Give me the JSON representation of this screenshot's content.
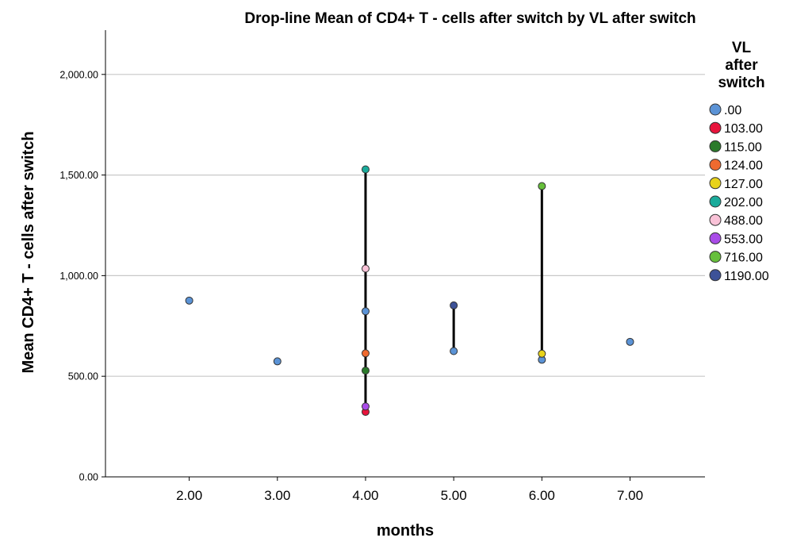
{
  "chart_data": {
    "type": "scatter",
    "title": "Drop-line Mean of CD4+ T -  cells after switch by VL after switch",
    "xlabel": "months",
    "ylabel": "Mean CD4+ T - cells after switch",
    "xlim": [
      1.05,
      7.85
    ],
    "ylim": [
      0,
      2220
    ],
    "x_ticks": [
      2,
      3,
      4,
      5,
      6,
      7
    ],
    "x_tick_labels": [
      "2.00",
      "3.00",
      "4.00",
      "5.00",
      "6.00",
      "7.00"
    ],
    "y_ticks": [
      0,
      500,
      1000,
      1500,
      2000
    ],
    "y_tick_labels": [
      "0.00",
      "500.00",
      "1,000.00",
      "1,500.00",
      "2,000.00"
    ],
    "grid": "horizontal",
    "legend": {
      "title_lines": [
        "VL",
        "after",
        "switch"
      ],
      "placement": "right"
    },
    "drop_lines": true,
    "series": [
      {
        "name": ".00",
        "color": "#5b93d6",
        "points": [
          [
            2,
            876
          ],
          [
            3,
            574
          ],
          [
            4,
            823
          ],
          [
            5,
            625
          ],
          [
            6,
            582
          ],
          [
            7,
            671
          ]
        ]
      },
      {
        "name": "103.00",
        "color": "#e8143c",
        "points": [
          [
            4,
            323
          ]
        ]
      },
      {
        "name": "115.00",
        "color": "#2b7a2b",
        "points": [
          [
            4,
            528
          ]
        ]
      },
      {
        "name": "124.00",
        "color": "#ef6a2f",
        "points": [
          [
            4,
            614
          ]
        ]
      },
      {
        "name": "127.00",
        "color": "#e8d21a",
        "points": [
          [
            6,
            612
          ]
        ]
      },
      {
        "name": "202.00",
        "color": "#1aab9b",
        "points": [
          [
            4,
            1528
          ]
        ]
      },
      {
        "name": "488.00",
        "color": "#f9c2d7",
        "points": [
          [
            4,
            1035
          ]
        ]
      },
      {
        "name": "553.00",
        "color": "#a94ce8",
        "points": [
          [
            4,
            350
          ]
        ]
      },
      {
        "name": "716.00",
        "color": "#66bf3b",
        "points": [
          [
            6,
            1445
          ]
        ]
      },
      {
        "name": "1190.00",
        "color": "#3d5298",
        "points": [
          [
            5,
            852
          ]
        ]
      }
    ]
  }
}
